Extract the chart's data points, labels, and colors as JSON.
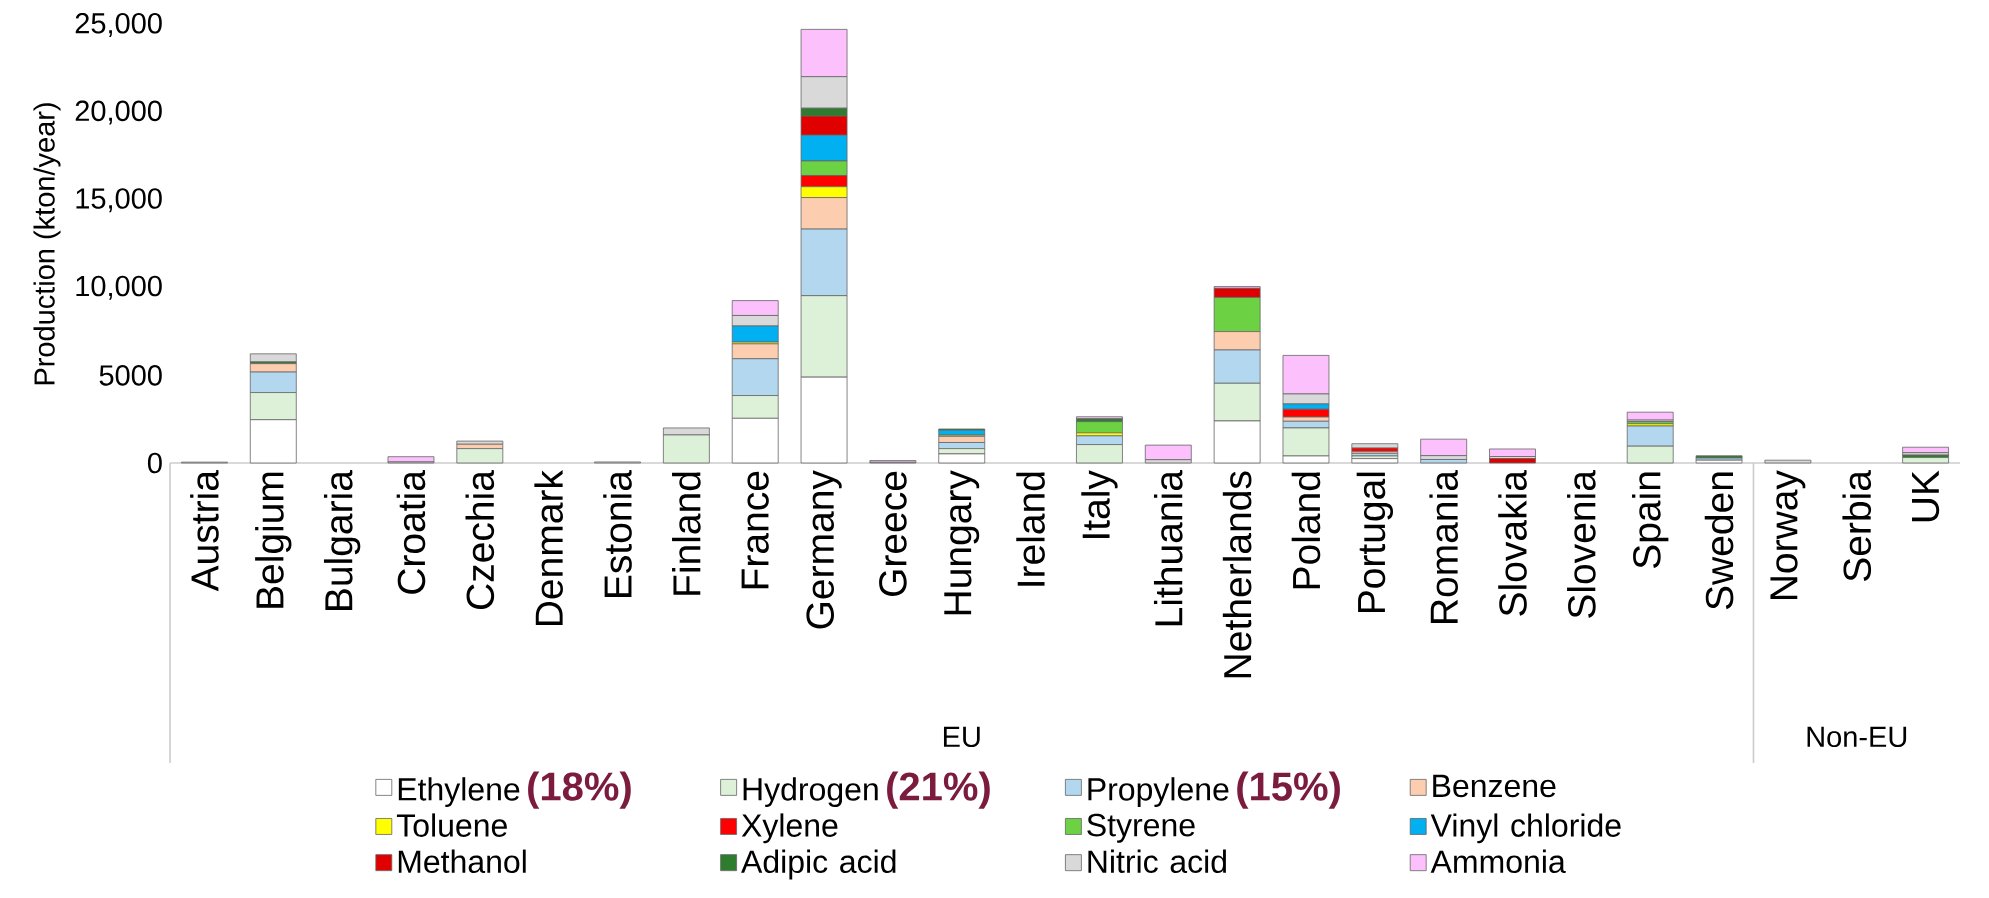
{
  "chart_data": {
    "type": "bar",
    "stacked": true,
    "ylabel": "Production (kton/year)",
    "categories": [
      "Austria",
      "Belgium",
      "Bulgaria",
      "Croatia",
      "Czechia",
      "Denmark",
      "Estonia",
      "Finland",
      "France",
      "Germany",
      "Greece",
      "Hungary",
      "Ireland",
      "Italy",
      "Lithuania",
      "Netherlands",
      "Poland",
      "Portugal",
      "Romania",
      "Slovakia",
      "Slovenia",
      "Spain",
      "Sweden",
      "Norway",
      "Serbia",
      "UK"
    ],
    "ylim": [
      0,
      25000
    ],
    "yticks": [
      0,
      5000,
      {
        "value": 10000,
        "label": "10,000"
      },
      {
        "value": 15000,
        "label": "15,000"
      },
      {
        "value": 20000,
        "label": "20,000"
      },
      {
        "value": 25000,
        "label": "25,000"
      }
    ],
    "legend": "bottom",
    "annotations": [
      "EU",
      "Non-EU",
      "(18%)",
      "(21%)",
      "(15%)"
    ],
    "series": [
      {
        "name": "Ethylene",
        "color": "#ffffff",
        "values": [
          0,
          2470,
          0,
          0,
          0,
          0,
          0,
          0,
          2550,
          4900,
          0,
          520,
          0,
          0,
          0,
          2400,
          400,
          250,
          0,
          0,
          0,
          0,
          160,
          0,
          0,
          0
        ]
      },
      {
        "name": "Hydrogen",
        "color": "#ddf0d8",
        "values": [
          0,
          1550,
          0,
          0,
          820,
          0,
          0,
          1600,
          1300,
          4650,
          0,
          300,
          0,
          1050,
          0,
          2150,
          1600,
          150,
          0,
          0,
          0,
          960,
          0,
          0,
          0,
          310
        ]
      },
      {
        "name": "Propylene",
        "color": "#b4d7f0",
        "values": [
          0,
          1170,
          0,
          0,
          0,
          0,
          0,
          0,
          2100,
          3800,
          0,
          350,
          0,
          500,
          0,
          1900,
          380,
          150,
          200,
          0,
          0,
          1150,
          120,
          0,
          0,
          0
        ]
      },
      {
        "name": "Benzene",
        "color": "#fdcdb0",
        "values": [
          0,
          480,
          0,
          0,
          250,
          0,
          0,
          0,
          850,
          1800,
          0,
          350,
          0,
          0,
          0,
          1050,
          240,
          100,
          0,
          0,
          0,
          0,
          0,
          0,
          0,
          0
        ]
      },
      {
        "name": "Toluene",
        "color": "#ffff00",
        "values": [
          0,
          0,
          0,
          0,
          0,
          0,
          0,
          0,
          100,
          620,
          0,
          70,
          0,
          170,
          0,
          0,
          0,
          0,
          0,
          0,
          0,
          130,
          0,
          0,
          0,
          0
        ]
      },
      {
        "name": "Xylene",
        "color": "#ff0000",
        "values": [
          0,
          0,
          0,
          0,
          0,
          0,
          0,
          0,
          0,
          640,
          0,
          0,
          0,
          0,
          0,
          0,
          450,
          200,
          0,
          0,
          0,
          0,
          0,
          0,
          0,
          0
        ]
      },
      {
        "name": "Styrene",
        "color": "#6dd144",
        "values": [
          0,
          0,
          0,
          0,
          0,
          0,
          0,
          0,
          0,
          830,
          0,
          0,
          0,
          640,
          0,
          1950,
          0,
          0,
          0,
          0,
          0,
          120,
          0,
          0,
          0,
          0
        ]
      },
      {
        "name": "Vinyl chloride",
        "color": "#00b0f0",
        "values": [
          0,
          0,
          0,
          0,
          0,
          0,
          0,
          0,
          920,
          1470,
          0,
          280,
          0,
          0,
          0,
          0,
          300,
          0,
          0,
          0,
          0,
          0,
          0,
          0,
          0,
          0
        ]
      },
      {
        "name": "Methanol",
        "color": "#e00000",
        "values": [
          0,
          0,
          0,
          0,
          0,
          0,
          0,
          0,
          0,
          1090,
          0,
          0,
          0,
          0,
          0,
          520,
          0,
          0,
          0,
          250,
          0,
          0,
          0,
          0,
          0,
          0
        ]
      },
      {
        "name": "Adipic acid",
        "color": "#2e7d2e",
        "values": [
          0,
          100,
          0,
          0,
          0,
          0,
          0,
          0,
          0,
          450,
          0,
          70,
          0,
          160,
          0,
          0,
          0,
          0,
          0,
          0,
          0,
          0,
          130,
          0,
          0,
          140
        ]
      },
      {
        "name": "Nitric acid",
        "color": "#d9d9d9",
        "values": [
          50,
          460,
          0,
          60,
          180,
          0,
          60,
          400,
          600,
          1800,
          40,
          0,
          0,
          0,
          190,
          0,
          570,
          250,
          220,
          120,
          0,
          90,
          0,
          160,
          0,
          140
        ]
      },
      {
        "name": "Ammonia",
        "color": "#fcc0fc",
        "values": [
          0,
          0,
          0,
          300,
          0,
          0,
          0,
          0,
          850,
          2700,
          100,
          0,
          0,
          120,
          830,
          100,
          2200,
          0,
          940,
          430,
          0,
          450,
          0,
          0,
          0,
          310
        ]
      }
    ]
  }
}
